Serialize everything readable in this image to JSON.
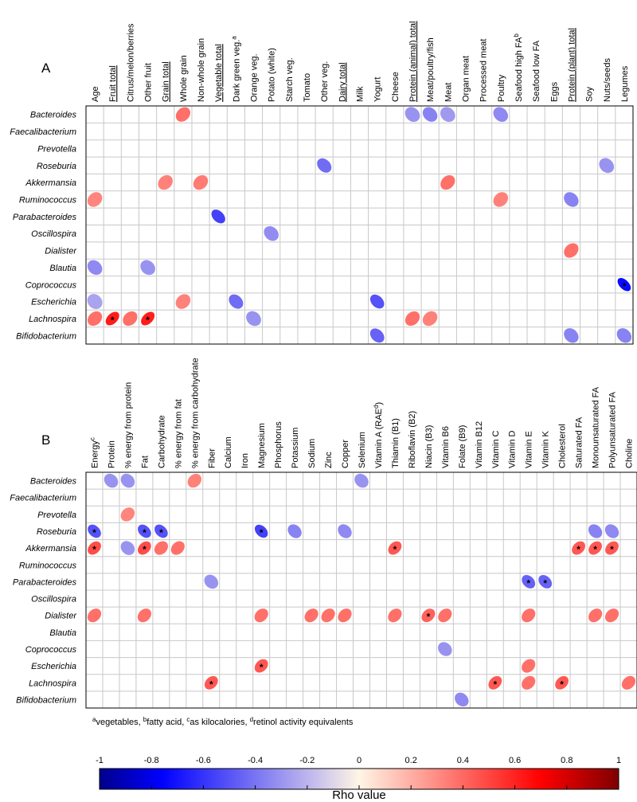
{
  "chart_data": [
    {
      "type": "heatmap",
      "panel": "A",
      "columns": [
        "Age",
        "Fruit total",
        "Citrus/melon/berries",
        "Other fruit",
        "Grain total",
        "Whole grain",
        "Non-whole grain",
        "Vegetable total",
        "Dark green veg.a",
        "Orange veg.",
        "Potato (white)",
        "Starch veg.",
        "Tomato",
        "Other veg.",
        "Dairy total",
        "Milk",
        "Yogurt",
        "Cheese",
        "Protein (animal) total",
        "Meat/poultry/fish",
        "Meat",
        "Organ meat",
        "Processed meat",
        "Poultry",
        "Seafood high FAb",
        "Seafood low FA",
        "Eggs",
        "Protein (plant) total",
        "Soy",
        "Nuts/seeds",
        "Legumes"
      ],
      "underlined_columns": [
        "Fruit total",
        "Grain total",
        "Vegetable total",
        "Dairy total",
        "Protein (animal) total",
        "Protein (plant) total"
      ],
      "rows": [
        "Bacteroides",
        "Faecalibacterium",
        "Prevotella",
        "Roseburia",
        "Akkermansia",
        "Ruminococcus",
        "Parabacteroides",
        "Oscillospira",
        "Dialister",
        "Blautia",
        "Coprococcus",
        "Escherichia",
        "Lachnospira",
        "Bifidobacterium"
      ],
      "cells": [
        [
          "Bacteroides",
          "Whole grain",
          0.38,
          false
        ],
        [
          "Bacteroides",
          "Protein (animal) total",
          -0.3,
          false
        ],
        [
          "Bacteroides",
          "Meat/poultry/fish",
          -0.35,
          false
        ],
        [
          "Bacteroides",
          "Meat",
          -0.28,
          false
        ],
        [
          "Bacteroides",
          "Poultry",
          -0.33,
          false
        ],
        [
          "Roseburia",
          "Other veg.",
          -0.42,
          false
        ],
        [
          "Roseburia",
          "Nuts/seeds",
          -0.3,
          false
        ],
        [
          "Akkermansia",
          "Grain total",
          0.33,
          false
        ],
        [
          "Akkermansia",
          "Non-whole grain",
          0.35,
          false
        ],
        [
          "Akkermansia",
          "Meat",
          0.38,
          false
        ],
        [
          "Ruminococcus",
          "Age",
          0.32,
          false
        ],
        [
          "Ruminococcus",
          "Poultry",
          0.33,
          false
        ],
        [
          "Ruminococcus",
          "Protein (plant) total",
          -0.35,
          false
        ],
        [
          "Parabacteroides",
          "Vegetable total",
          -0.55,
          false
        ],
        [
          "Oscillospira",
          "Potato (white)",
          -0.32,
          false
        ],
        [
          "Dialister",
          "Protein (plant) total",
          0.38,
          false
        ],
        [
          "Blautia",
          "Age",
          -0.33,
          false
        ],
        [
          "Blautia",
          "Other fruit",
          -0.3,
          false
        ],
        [
          "Coprococcus",
          "Legumes",
          -0.72,
          true
        ],
        [
          "Escherichia",
          "Age",
          -0.25,
          false
        ],
        [
          "Escherichia",
          "Whole grain",
          0.33,
          false
        ],
        [
          "Escherichia",
          "Dark green veg.a",
          -0.42,
          false
        ],
        [
          "Escherichia",
          "Yogurt",
          -0.5,
          false
        ],
        [
          "Lachnospira",
          "Age",
          0.38,
          false
        ],
        [
          "Lachnospira",
          "Fruit total",
          0.62,
          true
        ],
        [
          "Lachnospira",
          "Citrus/melon/berries",
          0.38,
          false
        ],
        [
          "Lachnospira",
          "Other fruit",
          0.62,
          true
        ],
        [
          "Lachnospira",
          "Orange veg.",
          -0.3,
          false
        ],
        [
          "Lachnospira",
          "Protein (animal) total",
          0.38,
          false
        ],
        [
          "Lachnospira",
          "Meat/poultry/fish",
          0.33,
          false
        ],
        [
          "Bifidobacterium",
          "Yogurt",
          -0.45,
          false
        ],
        [
          "Bifidobacterium",
          "Protein (plant) total",
          -0.35,
          false
        ],
        [
          "Bifidobacterium",
          "Legumes",
          -0.35,
          false
        ]
      ]
    },
    {
      "type": "heatmap",
      "panel": "B",
      "columns": [
        "Energyc",
        "Protein",
        "% energy from protein",
        "Fat",
        "Carbohydrate",
        "% energy from fat",
        "% energy from carbohydrate",
        "Fiber",
        "Calcium",
        "Iron",
        "Magnesium",
        "Phosphorus",
        "Potassium",
        "Sodium",
        "Zinc",
        "Copper",
        "Selenium",
        "Vitamin A (RAEd)",
        "Thiamin (B1)",
        "Riboflavin (B2)",
        "Niacin (B3)",
        "Vitamin B6",
        "Folate (B9)",
        "Vitamin B12",
        "Vitamin C",
        "Vitamin D",
        "Vitamin E",
        "Vitamin K",
        "Cholesterol",
        "Saturated FA",
        "Monounsaturated FA",
        "Polyunsaturated FA",
        "Choline"
      ],
      "rows": [
        "Bacteroides",
        "Faecalibacterium",
        "Prevotella",
        "Roseburia",
        "Akkermansia",
        "Ruminococcus",
        "Parabacteroides",
        "Oscillospira",
        "Dialister",
        "Blautia",
        "Coprococcus",
        "Escherichia",
        "Lachnospira",
        "Bifidobacterium"
      ],
      "cells": [
        [
          "Bacteroides",
          "Protein",
          -0.3,
          false
        ],
        [
          "Bacteroides",
          "% energy from protein",
          -0.3,
          false
        ],
        [
          "Bacteroides",
          "% energy from carbohydrate",
          0.33,
          false
        ],
        [
          "Bacteroides",
          "Selenium",
          -0.3,
          false
        ],
        [
          "Prevotella",
          "% energy from protein",
          0.32,
          false
        ],
        [
          "Roseburia",
          "Energyc",
          -0.5,
          true
        ],
        [
          "Roseburia",
          "Fat",
          -0.5,
          true
        ],
        [
          "Roseburia",
          "Carbohydrate",
          -0.5,
          true
        ],
        [
          "Roseburia",
          "Magnesium",
          -0.55,
          true
        ],
        [
          "Roseburia",
          "Potassium",
          -0.35,
          false
        ],
        [
          "Roseburia",
          "Copper",
          -0.33,
          false
        ],
        [
          "Roseburia",
          "Monounsaturated FA",
          -0.35,
          false
        ],
        [
          "Roseburia",
          "Polyunsaturated FA",
          -0.33,
          false
        ],
        [
          "Akkermansia",
          "Energyc",
          0.48,
          true
        ],
        [
          "Akkermansia",
          "% energy from protein",
          -0.3,
          false
        ],
        [
          "Akkermansia",
          "Fat",
          0.48,
          true
        ],
        [
          "Akkermansia",
          "% energy from fat",
          0.38,
          false
        ],
        [
          "Akkermansia",
          "Carbohydrate",
          0.38,
          false
        ],
        [
          "Akkermansia",
          "Thiamin (B1)",
          0.45,
          true
        ],
        [
          "Akkermansia",
          "Saturated FA",
          0.45,
          true
        ],
        [
          "Akkermansia",
          "Monounsaturated FA",
          0.45,
          true
        ],
        [
          "Akkermansia",
          "Polyunsaturated FA",
          0.45,
          true
        ],
        [
          "Parabacteroides",
          "Fiber",
          -0.3,
          false
        ],
        [
          "Parabacteroides",
          "Vitamin E",
          -0.45,
          true
        ],
        [
          "Parabacteroides",
          "Vitamin K",
          -0.45,
          true
        ],
        [
          "Dialister",
          "Energyc",
          0.38,
          false
        ],
        [
          "Dialister",
          "Fat",
          0.38,
          false
        ],
        [
          "Dialister",
          "Magnesium",
          0.38,
          false
        ],
        [
          "Dialister",
          "Sodium",
          0.38,
          false
        ],
        [
          "Dialister",
          "Zinc",
          0.38,
          false
        ],
        [
          "Dialister",
          "Copper",
          0.38,
          false
        ],
        [
          "Dialister",
          "Thiamin (B1)",
          0.38,
          false
        ],
        [
          "Dialister",
          "Niacin (B3)",
          0.42,
          true
        ],
        [
          "Dialister",
          "Vitamin B6",
          0.38,
          false
        ],
        [
          "Dialister",
          "Vitamin E",
          0.38,
          false
        ],
        [
          "Dialister",
          "Monounsaturated FA",
          0.38,
          false
        ],
        [
          "Dialister",
          "Polyunsaturated FA",
          0.38,
          false
        ],
        [
          "Coprococcus",
          "Vitamin B6",
          -0.3,
          false
        ],
        [
          "Escherichia",
          "Magnesium",
          0.45,
          true
        ],
        [
          "Escherichia",
          "Vitamin E",
          0.38,
          false
        ],
        [
          "Lachnospira",
          "Fiber",
          0.45,
          true
        ],
        [
          "Lachnospira",
          "Vitamin C",
          0.45,
          true
        ],
        [
          "Lachnospira",
          "Vitamin E",
          0.38,
          false
        ],
        [
          "Lachnospira",
          "Cholesterol",
          0.45,
          true
        ],
        [
          "Lachnospira",
          "Choline",
          0.38,
          false
        ],
        [
          "Bifidobacterium",
          "Folate (B9)",
          -0.33,
          false
        ]
      ]
    }
  ],
  "panel_labels": {
    "a": "A",
    "b": "B"
  },
  "footnote": "avegetables, bfatty acid, cas kilocalories, dretinol activity equivalents",
  "colorbar": {
    "title": "Rho value",
    "ticks": [
      "-1",
      "-0.8",
      "-0.6",
      "-0.4",
      "-0.2",
      "0",
      "0.2",
      "0.4",
      "0.6",
      "0.8",
      "1"
    ],
    "range": [
      -1,
      1
    ],
    "colors": [
      "#00008b",
      "#0000ff",
      "#fff5e6",
      "#ff0000",
      "#7f0000"
    ]
  },
  "significance_marker": "*"
}
